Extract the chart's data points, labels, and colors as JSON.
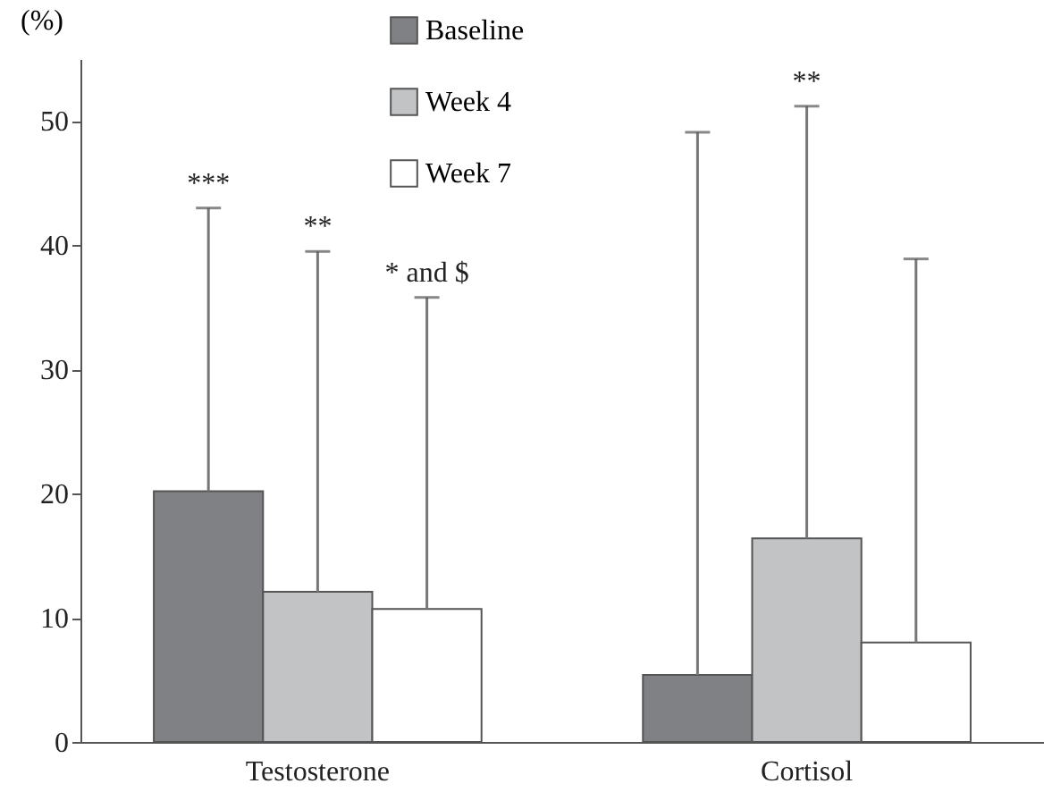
{
  "chart_data": {
    "type": "bar",
    "ylabel": "(%)",
    "categories": [
      "Testosterone",
      "Cortisol"
    ],
    "series": [
      {
        "name": "Baseline",
        "color": "#808184",
        "values": [
          20.2,
          5.4
        ],
        "errors": [
          [
            20.2,
            43.0
          ],
          [
            5.4,
            49.1
          ]
        ]
      },
      {
        "name": "Week 4",
        "color": "#c2c3c5",
        "values": [
          12.1,
          16.4
        ],
        "errors": [
          [
            12.1,
            39.5
          ],
          [
            16.4,
            51.2
          ]
        ]
      },
      {
        "name": "Week 7",
        "color": "#ffffff",
        "values": [
          10.7,
          8.0
        ],
        "errors": [
          [
            10.7,
            35.8
          ],
          [
            8.0,
            38.9
          ]
        ]
      }
    ],
    "ylim": [
      0,
      55
    ],
    "yticks": [
      0,
      10,
      20,
      30,
      40,
      50
    ],
    "grid": false,
    "legend": "top",
    "annotations": [
      "***",
      "**",
      "* and $",
      "**"
    ]
  }
}
